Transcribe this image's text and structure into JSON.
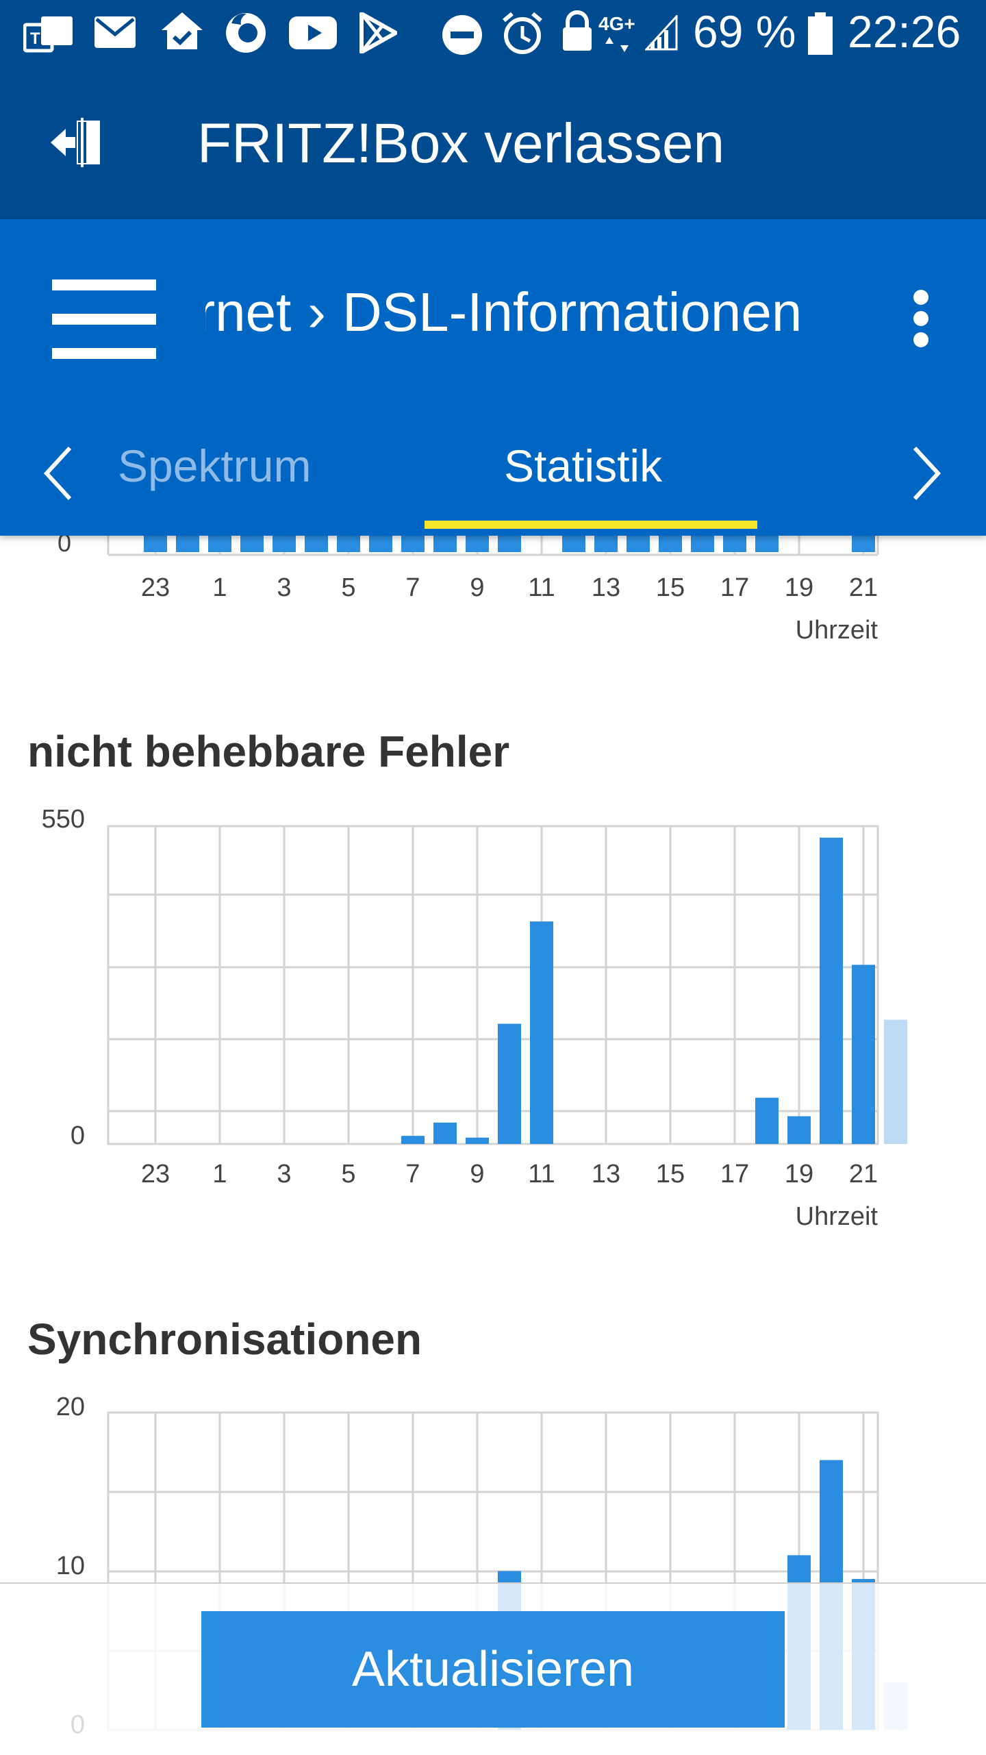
{
  "status_bar": {
    "battery": "69 %",
    "time": "22:26",
    "network": "4G+",
    "icons": [
      "teams-icon",
      "mail-icon",
      "home-check-icon",
      "firefox-icon",
      "youtube-icon",
      "play-store-icon",
      "do-not-disturb-icon",
      "alarm-icon",
      "lock-icon",
      "network-icon",
      "signal-icon",
      "battery-icon"
    ]
  },
  "exit_bar": {
    "title": "FRITZ!Box verlassen",
    "icon": "exit-icon"
  },
  "nav": {
    "breadcrumb_parent": "Internet",
    "breadcrumb_separator": "›",
    "breadcrumb_current": "DSL-Informationen",
    "tabs": [
      {
        "label": "Spektrum",
        "active": false
      },
      {
        "label": "Statistik",
        "active": true
      }
    ],
    "accent_color": "#f5e52a",
    "header_color": "#0066c4",
    "dark_color": "#004a8f"
  },
  "x_ticks": [
    "23",
    "1",
    "3",
    "5",
    "7",
    "9",
    "11",
    "13",
    "15",
    "17",
    "19",
    "21"
  ],
  "chart_top": {
    "ytick_zero": "0",
    "x_label": "Uhrzeit"
  },
  "chart_data": [
    {
      "type": "bar",
      "title": "",
      "xlabel": "Uhrzeit",
      "categories": [
        "22",
        "23",
        "0",
        "1",
        "2",
        "3",
        "4",
        "5",
        "6",
        "7",
        "8",
        "9",
        "10",
        "11",
        "12",
        "13",
        "14",
        "15",
        "16",
        "17",
        "18",
        "19",
        "20",
        "21",
        "22"
      ],
      "visible_hours_with_bars": [
        "23",
        "0",
        "1",
        "2",
        "3",
        "4",
        "5",
        "6",
        "7",
        "8",
        "9",
        "10",
        "12",
        "13",
        "14",
        "15",
        "16",
        "17",
        "18",
        "21"
      ]
    },
    {
      "type": "bar",
      "title": "nicht behebbare Fehler",
      "xlabel": "Uhrzeit",
      "ylim": [
        0,
        550
      ],
      "ytick_labels": [
        "550",
        "0"
      ],
      "categories": [
        "22",
        "23",
        "0",
        "1",
        "2",
        "3",
        "4",
        "5",
        "6",
        "7",
        "8",
        "9",
        "10",
        "11",
        "12",
        "13",
        "14",
        "15",
        "16",
        "17",
        "18",
        "19",
        "20",
        "21",
        "22"
      ],
      "values": [
        0,
        0,
        0,
        0,
        0,
        0,
        0,
        0,
        0,
        14,
        37,
        11,
        208,
        385,
        0,
        0,
        0,
        0,
        0,
        0,
        80,
        48,
        530,
        310,
        215
      ],
      "current_hour_highlight": "22",
      "colors": {
        "bar": "#2b8de0",
        "current": "#bcdaf5"
      }
    },
    {
      "type": "bar",
      "title": "Synchronisationen",
      "xlabel": "Uhrzeit",
      "ylim": [
        0,
        20
      ],
      "ytick_labels": [
        "20",
        "10",
        "0"
      ],
      "categories": [
        "22",
        "23",
        "0",
        "1",
        "2",
        "3",
        "4",
        "5",
        "6",
        "7",
        "8",
        "9",
        "10",
        "11",
        "12",
        "13",
        "14",
        "15",
        "16",
        "17",
        "18",
        "19",
        "20",
        "21",
        "22"
      ],
      "values": [
        0,
        0,
        0,
        0,
        0,
        0,
        0,
        0,
        0,
        0,
        0,
        0,
        10,
        0,
        0,
        0,
        0,
        0,
        0,
        0,
        0,
        11,
        17,
        9.5,
        3
      ],
      "colors": {
        "bar": "#2b8de0",
        "current": "#bcdaf5"
      }
    }
  ],
  "charts_text": {
    "errors_title": "nicht behebbare Fehler",
    "errors_ymax": "550",
    "errors_y0": "0",
    "errors_xlabel": "Uhrzeit",
    "sync_title": "Synchronisationen",
    "sync_ymax": "20",
    "sync_ymid": "10",
    "sync_y0": "0"
  },
  "bottom": {
    "update_label": "Aktualisieren"
  }
}
